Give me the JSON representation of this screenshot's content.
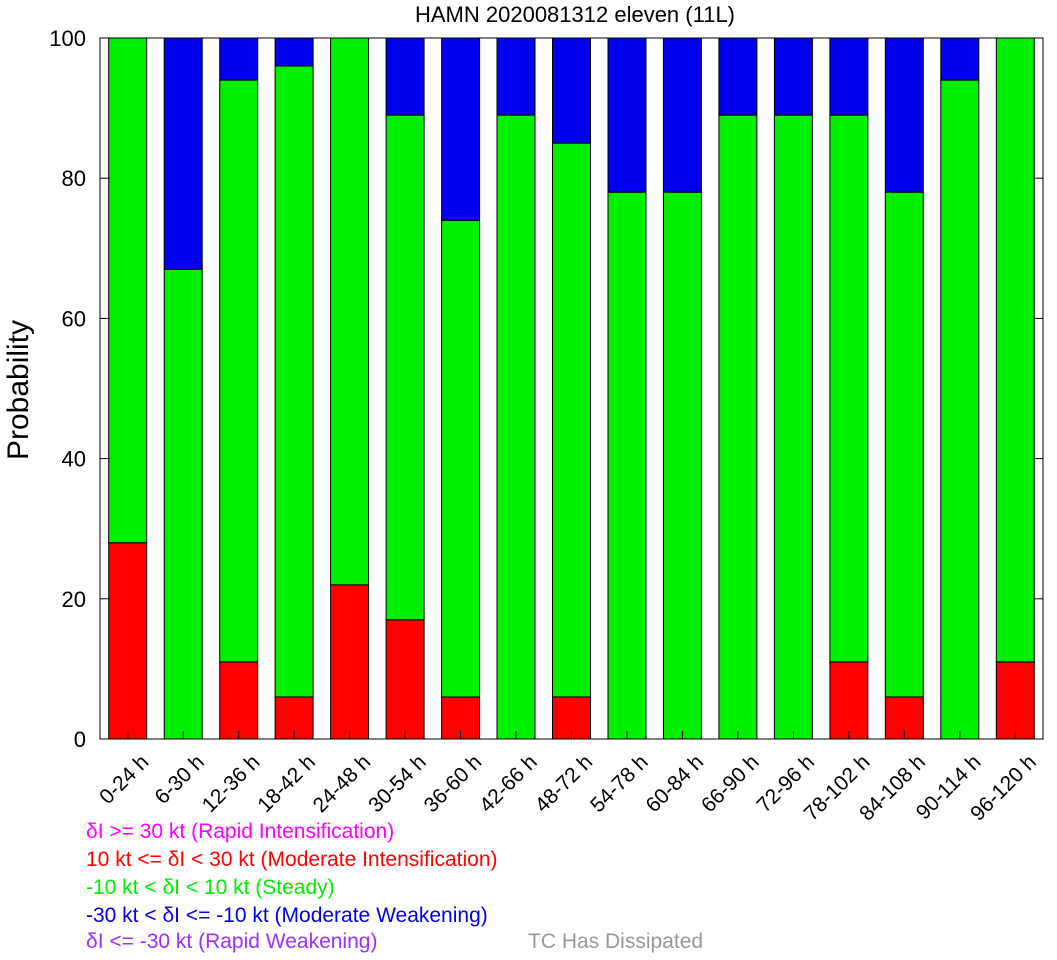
{
  "chart_data": {
    "type": "bar",
    "stacked": true,
    "title": "HAMN 2020081312 eleven (11L)",
    "ylabel": "Probability",
    "xlabel": "",
    "ylim": [
      0,
      100
    ],
    "yticks": [
      0,
      20,
      40,
      60,
      80,
      100
    ],
    "categories": [
      "0-24 h",
      "6-30 h",
      "12-36 h",
      "18-42 h",
      "24-48 h",
      "30-54 h",
      "36-60 h",
      "42-66 h",
      "48-72 h",
      "54-78 h",
      "60-84 h",
      "66-90 h",
      "72-96 h",
      "78-102 h",
      "84-108 h",
      "90-114 h",
      "96-120 h"
    ],
    "series": [
      {
        "key": "ri",
        "color": "#ff00ff",
        "values": [
          0,
          0,
          0,
          0,
          0,
          0,
          0,
          0,
          0,
          0,
          0,
          0,
          0,
          0,
          0,
          0,
          0
        ]
      },
      {
        "key": "mi",
        "color": "#ff0000",
        "values": [
          28,
          0,
          11,
          6,
          22,
          17,
          6,
          0,
          6,
          0,
          0,
          0,
          0,
          11,
          6,
          0,
          11
        ]
      },
      {
        "key": "steady",
        "color": "#00ee00",
        "values": [
          72,
          67,
          83,
          90,
          78,
          72,
          68,
          89,
          79,
          78,
          78,
          89,
          89,
          78,
          72,
          94,
          89
        ]
      },
      {
        "key": "mw",
        "color": "#0000ee",
        "values": [
          0,
          33,
          6,
          4,
          0,
          11,
          26,
          11,
          15,
          22,
          22,
          11,
          11,
          11,
          22,
          6,
          0
        ]
      },
      {
        "key": "rw",
        "color": "#9b30ff",
        "values": [
          0,
          0,
          0,
          0,
          0,
          0,
          0,
          0,
          0,
          0,
          0,
          0,
          0,
          0,
          0,
          0,
          0
        ]
      }
    ]
  },
  "legend": {
    "items": [
      {
        "text": "δI >= 30 kt (Rapid Intensification)",
        "color": "#ff00ff"
      },
      {
        "text": "10 kt <= δI < 30 kt (Moderate Intensification)",
        "color": "#ff0000"
      },
      {
        "text": "-10 kt < δI < 10 kt (Steady)",
        "color": "#00ee00"
      },
      {
        "text": "-30 kt < δI <= -10 kt (Moderate Weakening)",
        "color": "#0000ee"
      },
      {
        "text": "δI <= -30 kt (Rapid Weakening)",
        "color": "#9b30ff"
      }
    ],
    "dissipated": {
      "text": "TC Has Dissipated",
      "color": "#999999"
    }
  }
}
